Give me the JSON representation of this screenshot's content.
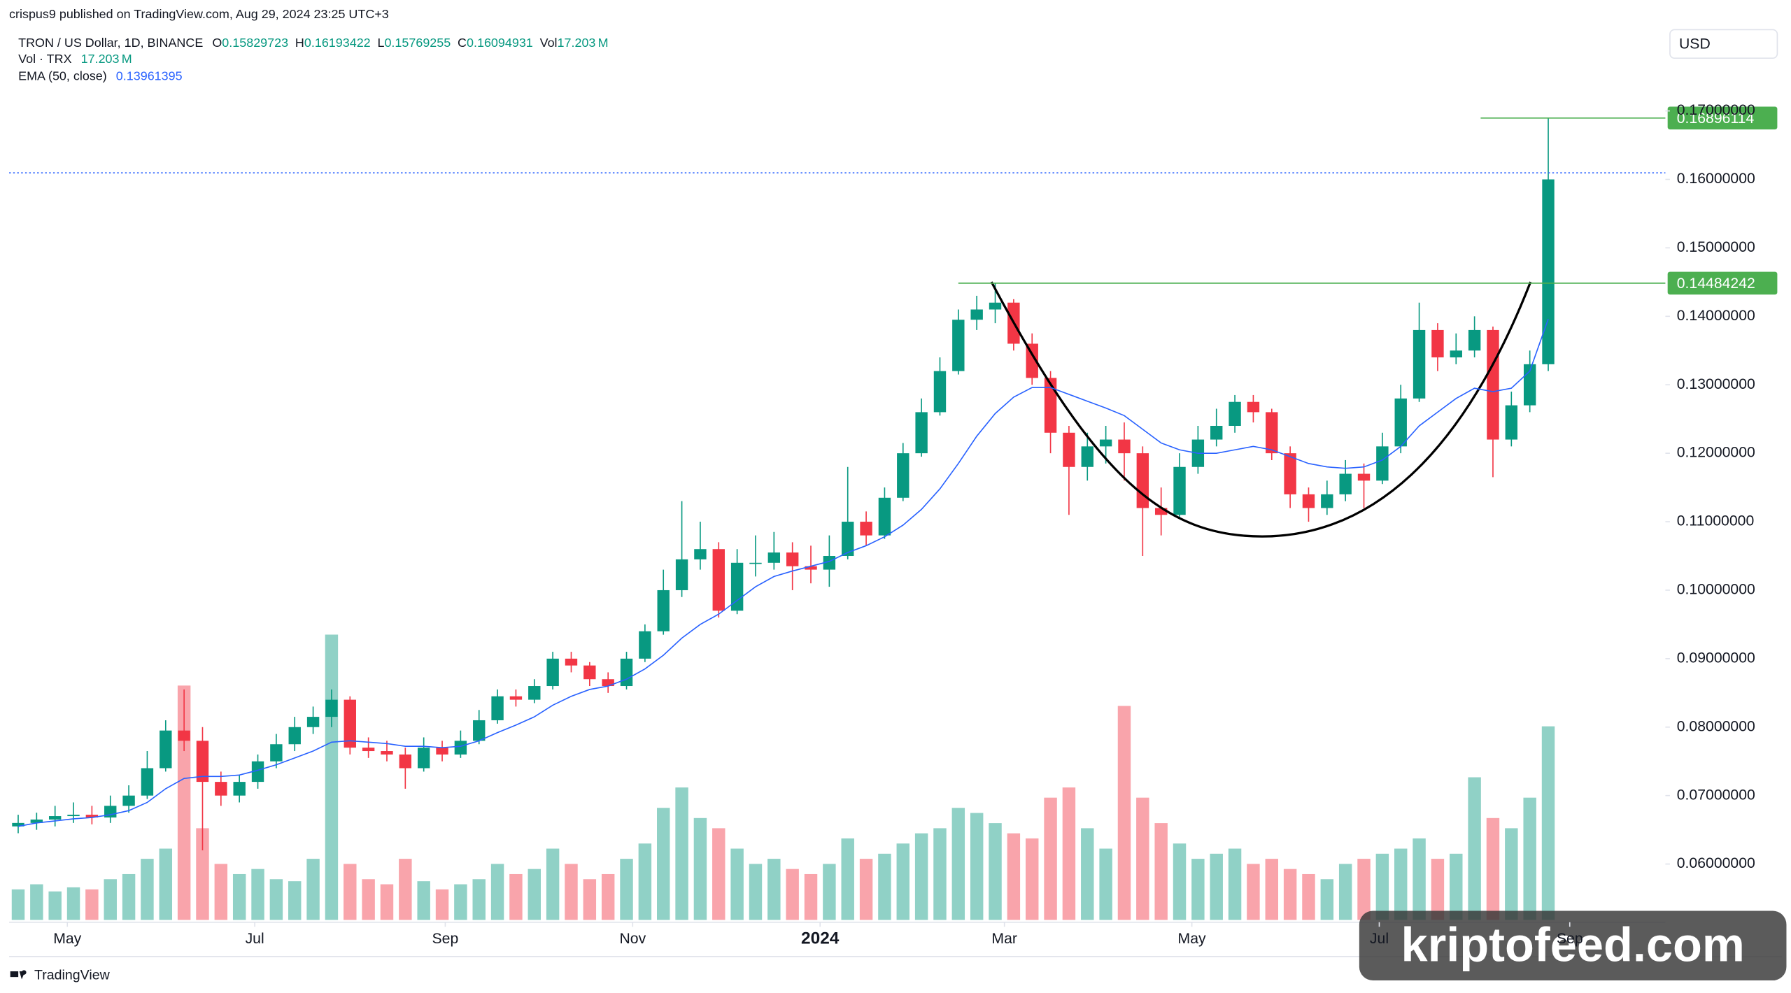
{
  "chart_data": {
    "type": "candlestick",
    "publisher_line": "crispus9 published on TradingView.com, Aug 29, 2024 23:25 UTC+3",
    "symbol": "TRON / US Dollar, 1D, BINANCE",
    "ohlc_legend": [
      {
        "label": "O",
        "value": 0.15829723
      },
      {
        "label": "H",
        "value": 0.16193422
      },
      {
        "label": "L",
        "value": 0.15769255
      },
      {
        "label": "C",
        "value": 0.16094931
      }
    ],
    "vol_header": {
      "label": "Vol",
      "value": 17.203,
      "unit": "M"
    },
    "vol_legend": {
      "label": "Vol · TRX",
      "value": 17.203,
      "unit": "M"
    },
    "ema_legend": {
      "label": "EMA (50, close)",
      "value": 0.13961395,
      "color": "#2962ff"
    },
    "currency": "USD",
    "logo": "TradingView",
    "watermark": "kriptofeed.com",
    "up_color": "#089981",
    "down_color": "#f23645",
    "xlim": [
      -18.2,
      519
    ],
    "xticks": [
      {
        "value": 0,
        "label": "May"
      },
      {
        "value": 61,
        "label": "Jul"
      },
      {
        "value": 123,
        "label": "Sep"
      },
      {
        "value": 184,
        "label": "Nov"
      },
      {
        "value": 245,
        "label": "2024"
      },
      {
        "value": 305,
        "label": "Mar"
      },
      {
        "value": 366,
        "label": "May"
      },
      {
        "value": 427,
        "label": "Jul"
      },
      {
        "value": 489,
        "label": "Sep"
      }
    ],
    "ylim": [
      0.0515,
      0.1822
    ],
    "yticks": [
      {
        "value": 0.06,
        "label": "0.06000000"
      },
      {
        "value": 0.07,
        "label": "0.07000000"
      },
      {
        "value": 0.08,
        "label": "0.08000000"
      },
      {
        "value": 0.09,
        "label": "0.09000000"
      },
      {
        "value": 0.1,
        "label": "0.10000000"
      },
      {
        "value": 0.11,
        "label": "0.11000000"
      },
      {
        "value": 0.12,
        "label": "0.12000000"
      },
      {
        "value": 0.13,
        "label": "0.13000000"
      },
      {
        "value": 0.14,
        "label": "0.14000000"
      },
      {
        "value": 0.15,
        "label": "0.15000000"
      },
      {
        "value": 0.16,
        "label": "0.16000000"
      },
      {
        "value": 0.17,
        "label": "0.17000000"
      }
    ],
    "grid": false,
    "levels": [
      {
        "value": 0.14484242,
        "from_x": 290,
        "color": "#4caf50"
      },
      {
        "value": 0.16896114,
        "from_x": 460,
        "color": "#4caf50"
      }
    ],
    "x": [
      -16,
      -10,
      -4,
      2,
      8,
      14,
      20,
      26,
      32,
      38,
      44,
      50,
      56,
      62,
      68,
      74,
      80,
      86,
      92,
      98,
      104,
      110,
      116,
      122,
      128,
      134,
      140,
      146,
      152,
      158,
      164,
      170,
      176,
      182,
      188,
      194,
      200,
      206,
      212,
      218,
      224,
      230,
      236,
      242,
      248,
      254,
      260,
      266,
      272,
      278,
      284,
      290,
      296,
      302,
      308,
      314,
      320,
      326,
      332,
      338,
      344,
      350,
      356,
      362,
      368,
      374,
      380,
      386,
      392,
      398,
      404,
      410,
      416,
      422,
      428,
      434,
      440,
      446,
      452,
      458,
      464,
      470,
      476,
      482
    ],
    "ohlc": [
      [
        0.0655,
        0.0672,
        0.0645,
        0.066
      ],
      [
        0.066,
        0.0675,
        0.065,
        0.0665
      ],
      [
        0.0665,
        0.0685,
        0.0655,
        0.067
      ],
      [
        0.067,
        0.069,
        0.066,
        0.0672
      ],
      [
        0.0672,
        0.0685,
        0.0658,
        0.0668
      ],
      [
        0.0668,
        0.07,
        0.066,
        0.0685
      ],
      [
        0.0685,
        0.0715,
        0.0675,
        0.07
      ],
      [
        0.07,
        0.0765,
        0.0695,
        0.074
      ],
      [
        0.074,
        0.081,
        0.0735,
        0.0795
      ],
      [
        0.0795,
        0.0855,
        0.0765,
        0.078
      ],
      [
        0.078,
        0.08,
        0.062,
        0.072
      ],
      [
        0.072,
        0.0735,
        0.0685,
        0.07
      ],
      [
        0.07,
        0.073,
        0.069,
        0.072
      ],
      [
        0.072,
        0.076,
        0.071,
        0.075
      ],
      [
        0.075,
        0.079,
        0.074,
        0.0775
      ],
      [
        0.0775,
        0.0815,
        0.0765,
        0.08
      ],
      [
        0.08,
        0.083,
        0.079,
        0.0815
      ],
      [
        0.0815,
        0.0855,
        0.08,
        0.084
      ],
      [
        0.084,
        0.0845,
        0.076,
        0.077
      ],
      [
        0.077,
        0.0785,
        0.0755,
        0.0765
      ],
      [
        0.0765,
        0.078,
        0.075,
        0.076
      ],
      [
        0.076,
        0.077,
        0.071,
        0.074
      ],
      [
        0.074,
        0.0785,
        0.0735,
        0.077
      ],
      [
        0.077,
        0.078,
        0.075,
        0.076
      ],
      [
        0.076,
        0.0795,
        0.0755,
        0.078
      ],
      [
        0.078,
        0.0825,
        0.0775,
        0.081
      ],
      [
        0.081,
        0.0855,
        0.0805,
        0.0845
      ],
      [
        0.0845,
        0.0855,
        0.083,
        0.084
      ],
      [
        0.084,
        0.087,
        0.0835,
        0.086
      ],
      [
        0.086,
        0.091,
        0.0855,
        0.09
      ],
      [
        0.09,
        0.091,
        0.088,
        0.089
      ],
      [
        0.089,
        0.0895,
        0.086,
        0.087
      ],
      [
        0.087,
        0.088,
        0.085,
        0.086
      ],
      [
        0.086,
        0.091,
        0.0855,
        0.09
      ],
      [
        0.09,
        0.095,
        0.0895,
        0.094
      ],
      [
        0.094,
        0.103,
        0.0935,
        0.1
      ],
      [
        0.1,
        0.113,
        0.099,
        0.1045
      ],
      [
        0.1045,
        0.11,
        0.103,
        0.106
      ],
      [
        0.106,
        0.107,
        0.096,
        0.097
      ],
      [
        0.097,
        0.106,
        0.0965,
        0.104
      ],
      [
        0.104,
        0.108,
        0.102,
        0.104
      ],
      [
        0.104,
        0.1085,
        0.103,
        0.1055
      ],
      [
        0.1055,
        0.107,
        0.1,
        0.1035
      ],
      [
        0.1035,
        0.1065,
        0.101,
        0.103
      ],
      [
        0.103,
        0.108,
        0.1005,
        0.105
      ],
      [
        0.105,
        0.118,
        0.1045,
        0.11
      ],
      [
        0.11,
        0.1115,
        0.1065,
        0.108
      ],
      [
        0.108,
        0.115,
        0.1075,
        0.1135
      ],
      [
        0.1135,
        0.1215,
        0.113,
        0.12
      ],
      [
        0.12,
        0.128,
        0.1195,
        0.126
      ],
      [
        0.126,
        0.134,
        0.1255,
        0.132
      ],
      [
        0.132,
        0.141,
        0.1315,
        0.1395
      ],
      [
        0.1395,
        0.143,
        0.138,
        0.141
      ],
      [
        0.141,
        0.1448,
        0.139,
        0.142
      ],
      [
        0.142,
        0.1425,
        0.135,
        0.136
      ],
      [
        0.136,
        0.1375,
        0.13,
        0.131
      ],
      [
        0.131,
        0.132,
        0.12,
        0.123
      ],
      [
        0.123,
        0.124,
        0.111,
        0.118
      ],
      [
        0.118,
        0.123,
        0.116,
        0.121
      ],
      [
        0.121,
        0.124,
        0.1185,
        0.122
      ],
      [
        0.122,
        0.1245,
        0.116,
        0.12
      ],
      [
        0.12,
        0.121,
        0.105,
        0.112
      ],
      [
        0.112,
        0.115,
        0.108,
        0.111
      ],
      [
        0.111,
        0.12,
        0.1105,
        0.118
      ],
      [
        0.118,
        0.124,
        0.117,
        0.122
      ],
      [
        0.122,
        0.1265,
        0.121,
        0.124
      ],
      [
        0.124,
        0.1285,
        0.123,
        0.1275
      ],
      [
        0.1275,
        0.1285,
        0.1245,
        0.126
      ],
      [
        0.126,
        0.1265,
        0.119,
        0.12
      ],
      [
        0.12,
        0.121,
        0.112,
        0.114
      ],
      [
        0.114,
        0.115,
        0.11,
        0.112
      ],
      [
        0.112,
        0.116,
        0.111,
        0.114
      ],
      [
        0.114,
        0.119,
        0.113,
        0.117
      ],
      [
        0.117,
        0.1185,
        0.112,
        0.116
      ],
      [
        0.116,
        0.123,
        0.1155,
        0.121
      ],
      [
        0.121,
        0.13,
        0.12,
        0.128
      ],
      [
        0.128,
        0.142,
        0.1275,
        0.138
      ],
      [
        0.138,
        0.139,
        0.132,
        0.134
      ],
      [
        0.134,
        0.1375,
        0.133,
        0.135
      ],
      [
        0.135,
        0.14,
        0.134,
        0.138
      ],
      [
        0.138,
        0.1385,
        0.1165,
        0.122
      ],
      [
        0.122,
        0.129,
        0.121,
        0.127
      ],
      [
        0.127,
        0.135,
        0.126,
        0.133
      ],
      [
        0.133,
        0.169,
        0.132,
        0.16
      ]
    ],
    "volume": [
      30,
      35,
      28,
      32,
      30,
      40,
      45,
      60,
      70,
      230,
      90,
      55,
      45,
      50,
      40,
      38,
      60,
      280,
      55,
      40,
      35,
      60,
      38,
      30,
      35,
      40,
      55,
      45,
      50,
      70,
      55,
      40,
      45,
      60,
      75,
      110,
      130,
      100,
      90,
      70,
      55,
      60,
      50,
      45,
      55,
      80,
      60,
      65,
      75,
      85,
      90,
      110,
      105,
      95,
      85,
      80,
      120,
      130,
      90,
      70,
      210,
      120,
      95,
      75,
      60,
      65,
      70,
      55,
      60,
      50,
      45,
      40,
      55,
      60,
      65,
      70,
      80,
      60,
      65,
      140,
      100,
      90,
      120,
      190
    ],
    "ema": [
      0.0655,
      0.066,
      0.0663,
      0.0666,
      0.0668,
      0.0672,
      0.0678,
      0.069,
      0.071,
      0.0725,
      0.0728,
      0.0728,
      0.073,
      0.0737,
      0.0745,
      0.0755,
      0.0765,
      0.0778,
      0.078,
      0.0778,
      0.0776,
      0.0772,
      0.0772,
      0.077,
      0.0772,
      0.078,
      0.0792,
      0.0803,
      0.0815,
      0.0832,
      0.0845,
      0.0855,
      0.086,
      0.087,
      0.0885,
      0.0905,
      0.093,
      0.095,
      0.0965,
      0.0985,
      0.1005,
      0.102,
      0.1028,
      0.1035,
      0.1042,
      0.1055,
      0.1065,
      0.1078,
      0.1095,
      0.1118,
      0.1148,
      0.1185,
      0.1225,
      0.1258,
      0.1282,
      0.1296,
      0.1296,
      0.1286,
      0.1276,
      0.1266,
      0.1255,
      0.1235,
      0.1215,
      0.1205,
      0.12,
      0.12,
      0.1205,
      0.121,
      0.1205,
      0.1195,
      0.1185,
      0.118,
      0.1178,
      0.118,
      0.119,
      0.121,
      0.124,
      0.126,
      0.128,
      0.1295,
      0.129,
      0.1295,
      0.132,
      0.1396
    ]
  }
}
